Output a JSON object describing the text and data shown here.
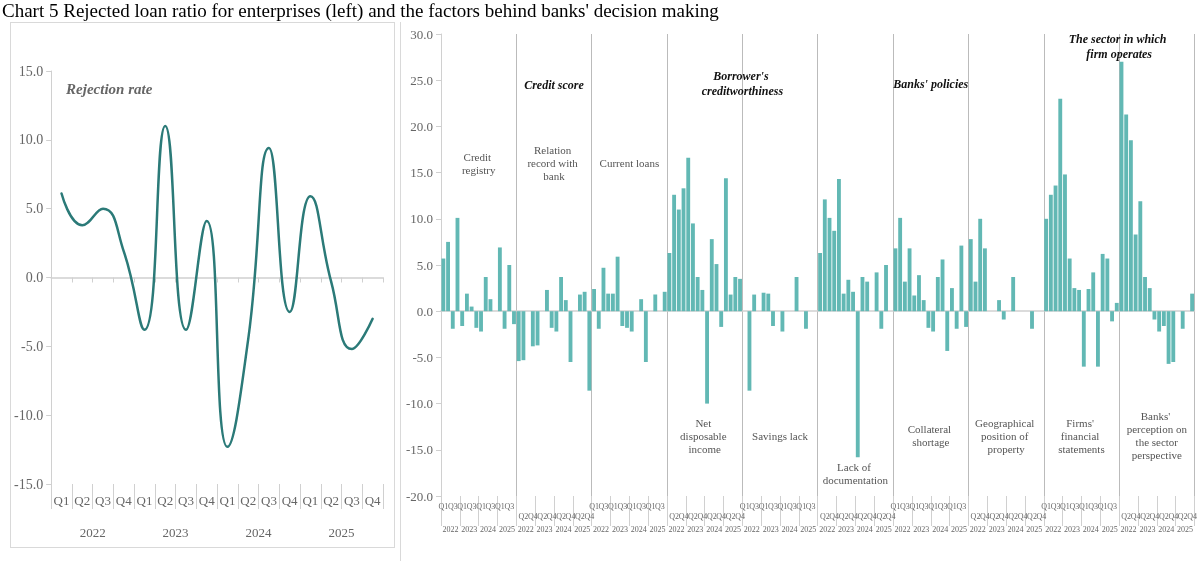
{
  "chart_data": [
    {
      "type": "line",
      "title": "Chart 5 Rejected loan ratio for enterprises (left) and the factors behind banks' decision making",
      "categories": [
        "Q1",
        "Q2",
        "Q3",
        "Q4",
        "Q1",
        "Q2",
        "Q3",
        "Q4",
        "Q1",
        "Q2",
        "Q3",
        "Q4",
        "Q1",
        "Q2",
        "Q3",
        "Q4"
      ],
      "series": [
        {
          "color": "#2b7a78",
          "values": [
            6.1,
            3.8,
            5.0,
            1.9,
            -3.8,
            11.0,
            -3.8,
            4.1,
            -12.3,
            -4.5,
            9.4,
            -2.5,
            5.9,
            -0.3,
            -5.2,
            -3.0
          ]
        }
      ],
      "ylim": [
        -15,
        15
      ],
      "yticks": [
        {
          "value": -15,
          "label": "-15.0"
        },
        {
          "value": -10,
          "label": "-10.0"
        },
        {
          "value": -5,
          "label": "-5.0"
        },
        {
          "value": 0,
          "label": "0.0"
        },
        {
          "value": 5,
          "label": "5.0"
        },
        {
          "value": 10,
          "label": "10.0"
        },
        {
          "value": 15,
          "label": "15.0"
        }
      ],
      "marker": "none",
      "line_style": "solid",
      "annotations": [
        "Rejection rate",
        "2022",
        "2023",
        "2024",
        "2025"
      ]
    },
    {
      "type": "bar",
      "categories": [
        "Q1",
        null,
        "Q3",
        null,
        "Q1",
        null,
        "Q3",
        null,
        "Q1",
        null,
        "Q3",
        null,
        "Q1",
        null,
        "Q3",
        null,
        null,
        "Q2",
        null,
        "Q4",
        null,
        "Q2",
        null,
        "Q4",
        null,
        "Q2",
        null,
        "Q4",
        null,
        "Q2",
        null,
        "Q4",
        "Q1",
        null,
        "Q3",
        null,
        "Q1",
        null,
        "Q3",
        null,
        "Q1",
        null,
        "Q3",
        null,
        "Q1",
        null,
        "Q3",
        null,
        null,
        "Q2",
        null,
        "Q4",
        null,
        "Q2",
        null,
        "Q4",
        null,
        "Q2",
        null,
        "Q4",
        null,
        "Q2",
        null,
        "Q4",
        "Q1",
        null,
        "Q3",
        null,
        "Q1",
        null,
        "Q3",
        null,
        "Q1",
        null,
        "Q3",
        null,
        "Q1",
        null,
        "Q3",
        null,
        null,
        "Q2",
        null,
        "Q4",
        null,
        "Q2",
        null,
        "Q4",
        null,
        "Q2",
        null,
        "Q4",
        null,
        "Q2",
        null,
        "Q4",
        "Q1",
        null,
        "Q3",
        null,
        "Q1",
        null,
        "Q3",
        null,
        "Q1",
        null,
        "Q3",
        null,
        "Q1",
        null,
        "Q3",
        null,
        null,
        "Q2",
        null,
        "Q4",
        null,
        "Q2",
        null,
        "Q4",
        null,
        "Q2",
        null,
        "Q4",
        null,
        "Q2",
        null,
        "Q4",
        "Q1",
        null,
        "Q3",
        null,
        "Q1",
        null,
        "Q3",
        null,
        "Q1",
        null,
        "Q3",
        null,
        "Q1",
        null,
        "Q3",
        null,
        null,
        "Q2",
        null,
        "Q4",
        null,
        "Q2",
        null,
        "Q4",
        null,
        "Q2",
        null,
        "Q4",
        null,
        "Q2",
        null,
        "Q4"
      ],
      "series": [
        {
          "color": "#62b8b4",
          "values": [
            5.7,
            7.5,
            -1.9,
            10.1,
            -1.6,
            1.9,
            0.5,
            -1.8,
            -2.2,
            3.7,
            1.3,
            null,
            6.9,
            -1.9,
            5.0,
            -1.4,
            -5.4,
            -5.3,
            null,
            -3.8,
            -3.7,
            null,
            2.3,
            -1.8,
            -2.2,
            3.7,
            1.2,
            -5.5,
            null,
            1.8,
            2.1,
            -8.6,
            2.4,
            -1.9,
            4.7,
            1.9,
            1.9,
            5.9,
            -1.6,
            -1.8,
            -2.2,
            null,
            1.3,
            -5.5,
            null,
            1.8,
            null,
            2.1,
            6.3,
            12.6,
            11.0,
            13.3,
            16.6,
            9.5,
            3.7,
            2.3,
            -10.0,
            7.8,
            5.1,
            -1.7,
            14.4,
            1.8,
            3.7,
            3.5,
            null,
            -8.6,
            1.8,
            null,
            2.0,
            1.9,
            -1.6,
            null,
            -2.2,
            null,
            null,
            3.7,
            null,
            -1.9,
            null,
            null,
            6.3,
            12.1,
            10.1,
            8.7,
            14.3,
            1.9,
            3.4,
            2.1,
            -15.8,
            3.7,
            3.2,
            null,
            4.2,
            -1.9,
            5.0,
            null,
            6.8,
            10.1,
            3.2,
            6.8,
            1.7,
            3.9,
            1.2,
            -1.8,
            -2.2,
            3.7,
            5.6,
            -4.3,
            2.5,
            -1.9,
            7.1,
            -1.7,
            7.8,
            3.2,
            10.0,
            6.8,
            null,
            null,
            1.2,
            -0.9,
            null,
            3.7,
            null,
            null,
            null,
            -1.9,
            null,
            null,
            10.0,
            12.6,
            13.6,
            23.0,
            14.8,
            5.7,
            2.5,
            2.3,
            -6.0,
            2.4,
            4.2,
            -6.0,
            6.2,
            5.7,
            -1.1,
            0.9,
            27.0,
            21.3,
            18.5,
            8.3,
            11.9,
            3.7,
            2.5,
            -0.9,
            -2.2,
            -1.6,
            -5.7,
            -5.5,
            null,
            -1.9,
            null,
            1.9
          ]
        }
      ],
      "ylim": [
        -20,
        30
      ],
      "yticks": [
        {
          "value": -20,
          "label": "-20.0"
        },
        {
          "value": -15,
          "label": "-15.0"
        },
        {
          "value": -10,
          "label": "-10.0"
        },
        {
          "value": -5,
          "label": "-5.0"
        },
        {
          "value": 0,
          "label": "0.0"
        },
        {
          "value": 5,
          "label": "5.0"
        },
        {
          "value": 10,
          "label": "10.0"
        },
        {
          "value": 15,
          "label": "15.0"
        },
        {
          "value": 20,
          "label": "20.0"
        },
        {
          "value": 25,
          "label": "25.0"
        },
        {
          "value": 30,
          "label": "30.0"
        }
      ],
      "grid": "x",
      "annotations": [
        "Credit score",
        "Borrower's creditworthiness",
        "Banks' policies",
        "The sector in which firm operates",
        "Credit registry",
        "Relation record with bank",
        "Current loans",
        "Net disposable income",
        "Savings lack",
        "Lack of documentation",
        "Collateral shortage",
        "Geographical position of property",
        "Firms' financial statements",
        "Banks' perception on the sector perspective",
        "2022",
        "2023",
        "2024",
        "2025",
        "2022",
        "2023",
        "2024",
        "2025",
        "2022",
        "2023",
        "2024",
        "2025",
        "2022",
        "2023",
        "2024",
        "2025",
        "2022",
        "2023",
        "2024",
        "2025",
        "2022",
        "2023",
        "2024",
        "2025",
        "2022",
        "2023",
        "2024",
        "2025",
        "2022",
        "2023",
        "2024",
        "2025",
        "2022",
        "2023",
        "2024",
        "2025",
        "2022",
        "2023",
        "2024",
        "2025"
      ]
    }
  ]
}
